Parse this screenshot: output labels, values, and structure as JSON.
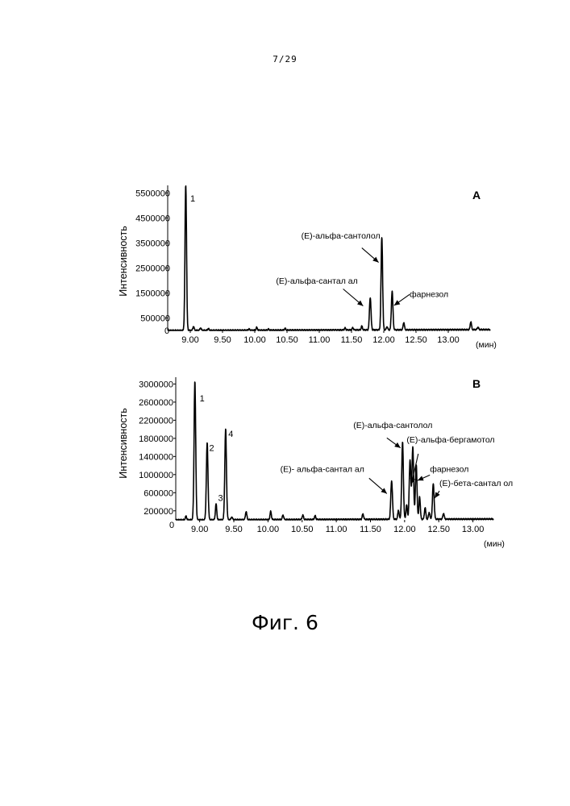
{
  "page": {
    "number": "7/29",
    "caption": "Фиг. 6"
  },
  "chart_data": [
    {
      "type": "line",
      "panel": "A",
      "ylabel": "Интенсивность",
      "xunit": "(мин)",
      "xlim": [
        8.65,
        13.65
      ],
      "ylim": [
        0,
        5800000
      ],
      "xticks": [
        "9.00",
        "9.50",
        "10.00",
        "10.50",
        "11.00",
        "11.50",
        "12.00",
        "12.50",
        "13.00"
      ],
      "yticks": [
        "500000",
        "1500000",
        "2500000",
        "3500000",
        "4500000",
        "5500000"
      ],
      "yzero_label": "0",
      "peaks": [
        {
          "x": 8.93,
          "y": 5800000,
          "w": 0.012
        },
        {
          "x": 9.05,
          "y": 160000,
          "w": 0.01
        },
        {
          "x": 9.16,
          "y": 100000,
          "w": 0.01
        },
        {
          "x": 9.28,
          "y": 70000,
          "w": 0.01
        },
        {
          "x": 9.91,
          "y": 50000,
          "w": 0.01
        },
        {
          "x": 10.03,
          "y": 110000,
          "w": 0.01
        },
        {
          "x": 10.21,
          "y": 40000,
          "w": 0.01
        },
        {
          "x": 10.47,
          "y": 70000,
          "w": 0.01
        },
        {
          "x": 11.4,
          "y": 80000,
          "w": 0.01
        },
        {
          "x": 11.52,
          "y": 90000,
          "w": 0.01
        },
        {
          "x": 11.66,
          "y": 150000,
          "w": 0.01
        },
        {
          "x": 11.79,
          "y": 1300000,
          "w": 0.012
        },
        {
          "x": 11.97,
          "y": 3700000,
          "w": 0.012
        },
        {
          "x": 12.05,
          "y": 130000,
          "w": 0.01
        },
        {
          "x": 12.13,
          "y": 1550000,
          "w": 0.012
        },
        {
          "x": 12.31,
          "y": 300000,
          "w": 0.01
        },
        {
          "x": 13.35,
          "y": 320000,
          "w": 0.01
        },
        {
          "x": 13.46,
          "y": 100000,
          "w": 0.01
        }
      ],
      "peak_labels": [
        {
          "text": "1",
          "x": 9.0,
          "y": 5150000
        }
      ],
      "annotations": [
        {
          "text": "(E)-альфа-сантолол",
          "text_x": 10.72,
          "text_y": 3670000,
          "arrow_from": [
            11.66,
            3300000
          ],
          "arrow_to": [
            11.92,
            2720000
          ]
        },
        {
          "text": "(E)-альфа-сантал ал",
          "text_x": 10.33,
          "text_y": 1870000,
          "arrow_from": [
            11.37,
            1660000
          ],
          "arrow_to": [
            11.68,
            980000
          ]
        },
        {
          "text": "фарнезол",
          "text_x": 12.4,
          "text_y": 1340000,
          "arrow_from": [
            12.4,
            1440000
          ],
          "arrow_to": [
            12.16,
            1000000
          ]
        }
      ]
    },
    {
      "type": "line",
      "panel": "B",
      "ylabel": "Интенсивность",
      "xunit": "(мин)",
      "xlim": [
        8.65,
        13.3
      ],
      "ylim": [
        0,
        3150000
      ],
      "xticks": [
        "9.00",
        "9.50",
        "10.00",
        "10.50",
        "11.00",
        "11.50",
        "12.00",
        "12.50",
        "13.00"
      ],
      "yticks": [
        "200000",
        "600000",
        "1000000",
        "1400000",
        "1800000",
        "2200000",
        "2600000",
        "3000000"
      ],
      "yzero_label": "0",
      "peaks": [
        {
          "x": 8.8,
          "y": 80000,
          "w": 0.01
        },
        {
          "x": 8.93,
          "y": 3050000,
          "w": 0.012
        },
        {
          "x": 9.11,
          "y": 1700000,
          "w": 0.012
        },
        {
          "x": 9.24,
          "y": 350000,
          "w": 0.01
        },
        {
          "x": 9.38,
          "y": 2000000,
          "w": 0.012
        },
        {
          "x": 9.47,
          "y": 60000,
          "w": 0.01
        },
        {
          "x": 9.68,
          "y": 180000,
          "w": 0.01
        },
        {
          "x": 10.04,
          "y": 180000,
          "w": 0.01
        },
        {
          "x": 10.22,
          "y": 100000,
          "w": 0.01
        },
        {
          "x": 10.51,
          "y": 100000,
          "w": 0.01
        },
        {
          "x": 10.69,
          "y": 80000,
          "w": 0.01
        },
        {
          "x": 11.39,
          "y": 120000,
          "w": 0.01
        },
        {
          "x": 11.81,
          "y": 850000,
          "w": 0.012
        },
        {
          "x": 11.91,
          "y": 200000,
          "w": 0.01
        },
        {
          "x": 11.97,
          "y": 1700000,
          "w": 0.012
        },
        {
          "x": 12.03,
          "y": 320000,
          "w": 0.01
        },
        {
          "x": 12.08,
          "y": 1300000,
          "w": 0.012
        },
        {
          "x": 12.12,
          "y": 1600000,
          "w": 0.012
        },
        {
          "x": 12.17,
          "y": 1200000,
          "w": 0.012
        },
        {
          "x": 12.22,
          "y": 500000,
          "w": 0.01
        },
        {
          "x": 12.3,
          "y": 260000,
          "w": 0.01
        },
        {
          "x": 12.36,
          "y": 150000,
          "w": 0.01
        },
        {
          "x": 12.42,
          "y": 780000,
          "w": 0.012
        },
        {
          "x": 12.57,
          "y": 130000,
          "w": 0.01
        }
      ],
      "peak_labels": [
        {
          "text": "1",
          "x": 9.0,
          "y": 2620000
        },
        {
          "text": "2",
          "x": 9.14,
          "y": 1520000
        },
        {
          "text": "3",
          "x": 9.27,
          "y": 420000
        },
        {
          "text": "4",
          "x": 9.42,
          "y": 1830000
        }
      ],
      "annotations": [
        {
          "text": "(E)-альфа-сантолол",
          "text_x": 11.25,
          "text_y": 2030000,
          "arrow_from": [
            11.74,
            1810000
          ],
          "arrow_to": [
            11.94,
            1590000
          ]
        },
        {
          "text": "(E)-альфа-бергамотол",
          "text_x": 12.03,
          "text_y": 1710000,
          "arrow_from": [
            12.2,
            1460000
          ],
          "arrow_to": [
            12.1,
            790000
          ]
        },
        {
          "text": "(E)- альфа-сантал ал",
          "text_x": 10.18,
          "text_y": 1060000,
          "arrow_from": [
            11.48,
            920000
          ],
          "arrow_to": [
            11.74,
            580000
          ]
        },
        {
          "text": "фарнезол",
          "text_x": 12.37,
          "text_y": 1060000,
          "arrow_from": [
            12.37,
            990000
          ],
          "arrow_to": [
            12.19,
            870000
          ]
        },
        {
          "text": "(E)-бета-сантал ол",
          "text_x": 12.51,
          "text_y": 750000,
          "arrow_from": [
            12.51,
            640000
          ],
          "arrow_to": [
            12.44,
            480000
          ]
        }
      ]
    }
  ]
}
